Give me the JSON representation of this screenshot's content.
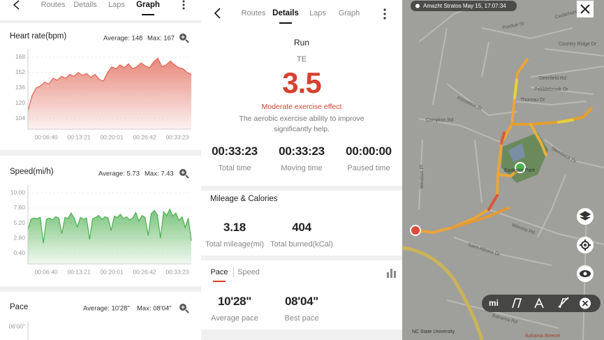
{
  "graph_screen": {
    "tabs": [
      "Routes",
      "Details",
      "Laps",
      "Graph"
    ],
    "charts": [
      {
        "type": "area",
        "title": "Heart rate(bpm)",
        "average": "Average: 148",
        "max": "Max: 167",
        "color": "#e0604f",
        "ylim": [
          93,
          173
        ],
        "yticks": [
          104,
          120,
          136,
          152,
          168
        ],
        "x_labels": [
          "00:06:40",
          "00:13:21",
          "00:20:01",
          "00:26:42",
          "00:33:23"
        ],
        "values": [
          112,
          128,
          136,
          138,
          142,
          140,
          146,
          144,
          148,
          146,
          150,
          148,
          152,
          149,
          151,
          147,
          150,
          145,
          143,
          152,
          158,
          156,
          160,
          157,
          161,
          156,
          158,
          162,
          159,
          157,
          163,
          167,
          158,
          160,
          164,
          160,
          157,
          156,
          152,
          150
        ]
      },
      {
        "type": "area",
        "title": "Speed(mi/h)",
        "average": "Average: 5.73",
        "max": "Max: 7.43",
        "color": "#4daf4f",
        "ylim": [
          -1.3,
          10.7
        ],
        "yticks": [
          {
            "value": 10,
            "label": "10.00"
          },
          {
            "value": 7.6,
            "label": "7.60"
          },
          {
            "value": 5.2,
            "label": "5.20"
          },
          {
            "value": 2.8,
            "label": "2.80"
          },
          {
            "value": 0.4,
            "label": "0.40"
          }
        ],
        "x_labels": [
          "00:06:40",
          "00:13:21",
          "00:20:01",
          "00:26:42",
          "00:33:23"
        ],
        "values": [
          4.2,
          5.8,
          6.0,
          5.9,
          6.1,
          2.0,
          5.8,
          6.0,
          5.7,
          6.2,
          6.0,
          3.5,
          6.1,
          5.9,
          6.8,
          6.0,
          4.6,
          6.1,
          5.8,
          6.0,
          2.6,
          5.9,
          6.1,
          6.4,
          5.8,
          6.2,
          6.0,
          4.0,
          6.3,
          6.1,
          6.6,
          5.9,
          6.2,
          5.7,
          6.0,
          6.9,
          5.5,
          6.4,
          6.1,
          3.2,
          6.7,
          7.2,
          6.5,
          2.8,
          7.0,
          6.4,
          7.43,
          6.3,
          6.8,
          5.6,
          6.2,
          4.5,
          6.0,
          2.4
        ]
      },
      {
        "title": "Pace",
        "average": "Average: 10'28\"",
        "max": "Max: 08'04\"",
        "ytick_labels": [
          "06'00\""
        ]
      }
    ]
  },
  "details_screen": {
    "tabs": [
      "Routes",
      "Details",
      "Laps",
      "Graph"
    ],
    "activity": "Run",
    "te_label": "TE",
    "te_value": 3.5,
    "effect": "Moderate exercise effect",
    "description": [
      "The aerobic exercise ability to improve",
      "significantly help."
    ],
    "stats": [
      {
        "value": "00:33:23",
        "label": "Total time"
      },
      {
        "value": "00:33:23",
        "label": "Moving time"
      },
      {
        "value": "00:00:00",
        "label": "Paused time"
      }
    ],
    "mileage_title": "Mileage & Calories",
    "mileage": [
      {
        "value": 3.18,
        "label": "Total mileage(mi)"
      },
      {
        "value": 404,
        "label": "Total burned(kCal)"
      }
    ],
    "pace_tabs": [
      "Pace",
      "Speed"
    ],
    "pace": [
      {
        "value": "10'28\"",
        "label": "Average pace"
      },
      {
        "value": "08'04\"",
        "label": "Best pace"
      }
    ]
  },
  "map_screen": {
    "device_label": "Amazht Stratos May 15, 17:07:34",
    "streets": [
      "Purdue St",
      "Cedarhurst Dr",
      "Country Ridge Dr",
      "Deerfield Rd",
      "Pebblebrook Dr",
      "Princeton St",
      "Thoreau Dr",
      "Compton Rd",
      "Steinbeck Dr",
      "Eastgate Park",
      "Windsor Pl",
      "Winona Rd",
      "Saint Albans Dr",
      "Bahama Rd",
      "NC State University",
      "Bahama Breeze"
    ],
    "unit": "mi"
  }
}
